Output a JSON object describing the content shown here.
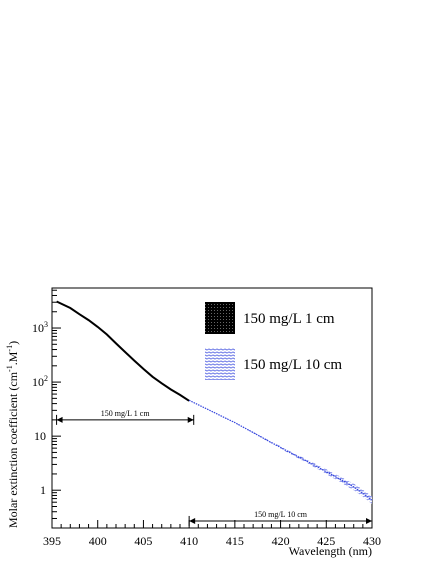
{
  "chart_data": {
    "type": "line",
    "xlabel": "Wavelength (nm)",
    "ylabel_main": "Molar extinction coefficient (cm",
    "ylabel_sup1": "-1",
    "ylabel_mid": ".M",
    "ylabel_sup2": "-1",
    "ylabel_end": ")",
    "xlim": [
      395,
      430
    ],
    "ylim": [
      0.2,
      5500
    ],
    "yscale": "log",
    "x_ticks": [
      395,
      400,
      405,
      410,
      415,
      420,
      425,
      430
    ],
    "x_tick_labels": [
      "395",
      "400",
      "405",
      "410",
      "415",
      "420",
      "425",
      "430"
    ],
    "y_ticks": [
      1,
      10,
      100,
      1000
    ],
    "y_tick_label_base": "10",
    "y_tick_label_one": "1",
    "y_tick_label_ten": "10",
    "y_tick_label_exps": [
      "2",
      "3"
    ],
    "legend_position": "top-right",
    "series": [
      {
        "name": "150 mg/L 1 cm",
        "color": "#000000",
        "x": [
          395.5,
          397,
          398,
          399,
          400,
          401,
          402,
          403,
          404,
          405,
          406,
          407,
          408,
          409,
          410
        ],
        "y": [
          3100,
          2350,
          1800,
          1400,
          1050,
          760,
          520,
          360,
          250,
          175,
          125,
          95,
          73,
          58,
          45
        ]
      },
      {
        "name": "150 mg/L 10 cm",
        "color": "#3344dd",
        "x": [
          410,
          411,
          412,
          413,
          414,
          415,
          416,
          417,
          418,
          419,
          420,
          421,
          422,
          423,
          424,
          425,
          426,
          427,
          428,
          429,
          430
        ],
        "y": [
          46,
          38,
          31.5,
          26,
          21.5,
          17.8,
          14.4,
          11.7,
          9.4,
          7.6,
          6.2,
          5.0,
          4.1,
          3.35,
          2.72,
          2.2,
          1.78,
          1.43,
          1.15,
          0.88,
          0.66
        ]
      }
    ],
    "annotations": [
      {
        "label": "150 mg/L 1 cm",
        "x_start": 395.5,
        "x_end": 410.5,
        "y": 20
      },
      {
        "label": "150 mg/L 10 cm",
        "x_start": 410,
        "x_end": 430,
        "y": 0.27
      }
    ]
  }
}
